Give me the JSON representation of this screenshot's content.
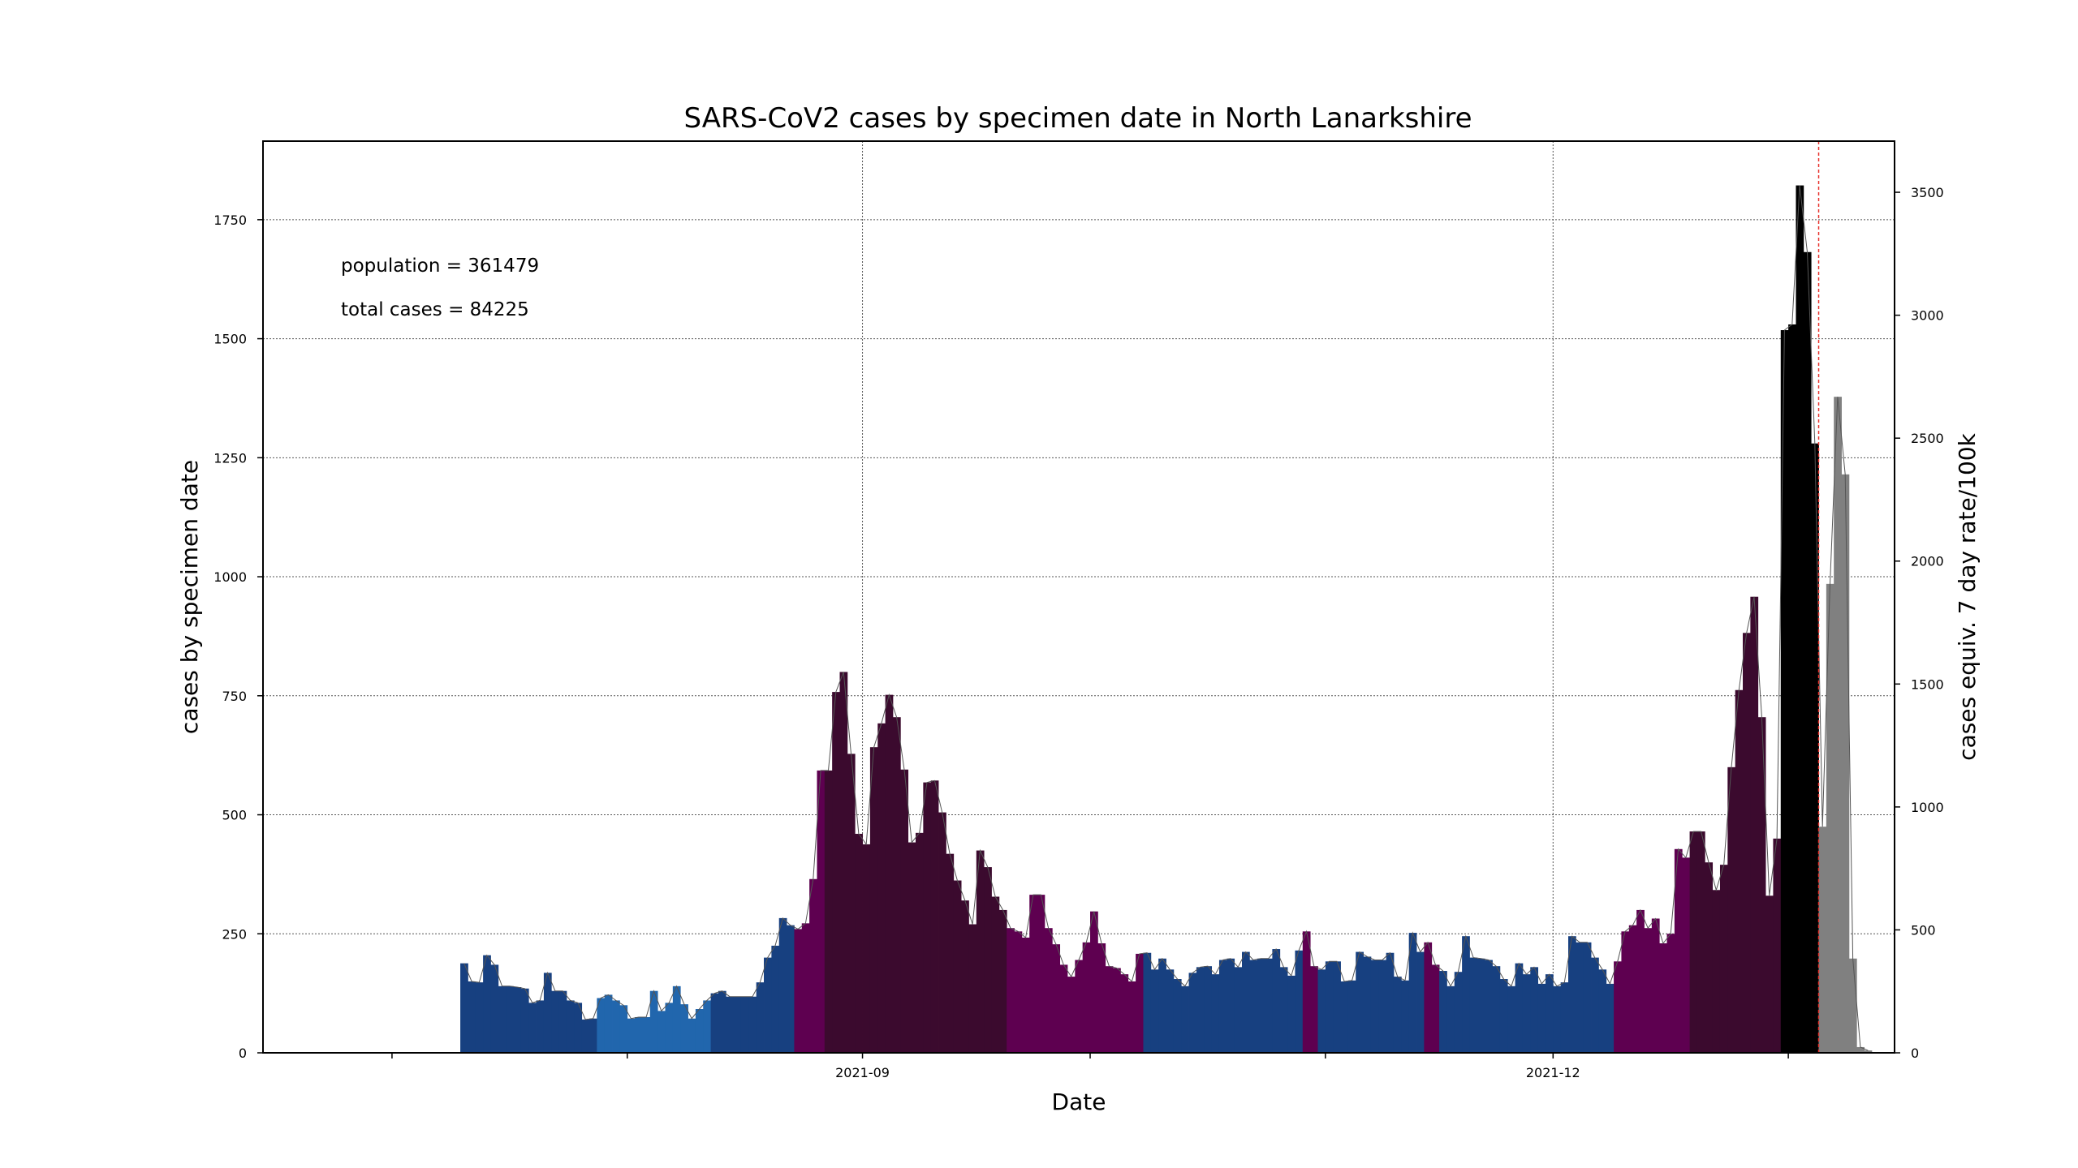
{
  "chart_data": {
    "type": "bar",
    "title": "SARS-CoV2 cases by specimen date in North Lanarkshire",
    "xlabel": "Date",
    "ylabel": "cases by specimen date",
    "y2label": "cases equiv. 7 day rate/100k",
    "annotations": [
      "population = 361479",
      "total cases = 84225"
    ],
    "x_start_date": "2021-07-10",
    "xlim": [
      "2021-06-14",
      "2022-01-15"
    ],
    "ylim": [
      0,
      1915
    ],
    "y2lim": [
      0,
      3708
    ],
    "x_ticks": [
      "2021-09",
      "2021-12"
    ],
    "y_ticks": [
      0,
      250,
      500,
      750,
      1000,
      1250,
      1500,
      1750
    ],
    "y2_ticks": [
      0,
      500,
      1000,
      1500,
      2000,
      2500,
      3000,
      3500
    ],
    "grid": true,
    "marker_line_date": "2022-01-05",
    "provisional_from_date": "2022-01-05",
    "palette": {
      "bar_low": "#174080",
      "bar_lowest": "#2166ad",
      "bar_mid": "#5e0050",
      "bar_high": "#3b0a2e",
      "bar_peak": "#000000",
      "provisional": "#808080",
      "marker_line": "#e8302a",
      "trend_line": "#555555"
    },
    "values": [
      188,
      150,
      148,
      205,
      185,
      140,
      140,
      138,
      135,
      105,
      110,
      168,
      130,
      130,
      110,
      105,
      70,
      72,
      115,
      122,
      110,
      100,
      72,
      75,
      75,
      130,
      88,
      105,
      140,
      102,
      72,
      92,
      110,
      125,
      130,
      118,
      118,
      118,
      118,
      148,
      200,
      225,
      283,
      268,
      260,
      272,
      365,
      593,
      593,
      758,
      800,
      628,
      460,
      438,
      642,
      692,
      752,
      705,
      595,
      442,
      462,
      568,
      572,
      505,
      418,
      362,
      320,
      270,
      425,
      390,
      328,
      300,
      262,
      255,
      242,
      332,
      332,
      262,
      228,
      185,
      160,
      195,
      232,
      297,
      230,
      182,
      178,
      165,
      150,
      208,
      210,
      175,
      198,
      175,
      155,
      140,
      168,
      180,
      182,
      165,
      195,
      198,
      180,
      212,
      195,
      198,
      198,
      218,
      180,
      162,
      215,
      255,
      182,
      175,
      192,
      192,
      150,
      152,
      212,
      202,
      195,
      195,
      210,
      160,
      152,
      252,
      212,
      232,
      185,
      172,
      140,
      170,
      245,
      200,
      198,
      195,
      182,
      155,
      140,
      188,
      165,
      180,
      145,
      165,
      140,
      148,
      245,
      232,
      232,
      200,
      175,
      145,
      192,
      255,
      268,
      300,
      262,
      282,
      230,
      250,
      428,
      410,
      465,
      465,
      400,
      342,
      395,
      600,
      762,
      882,
      958,
      705,
      330,
      450,
      1518,
      1530,
      1822,
      1682,
      1280,
      475,
      985,
      1378,
      1215,
      198,
      12,
      5
    ]
  }
}
